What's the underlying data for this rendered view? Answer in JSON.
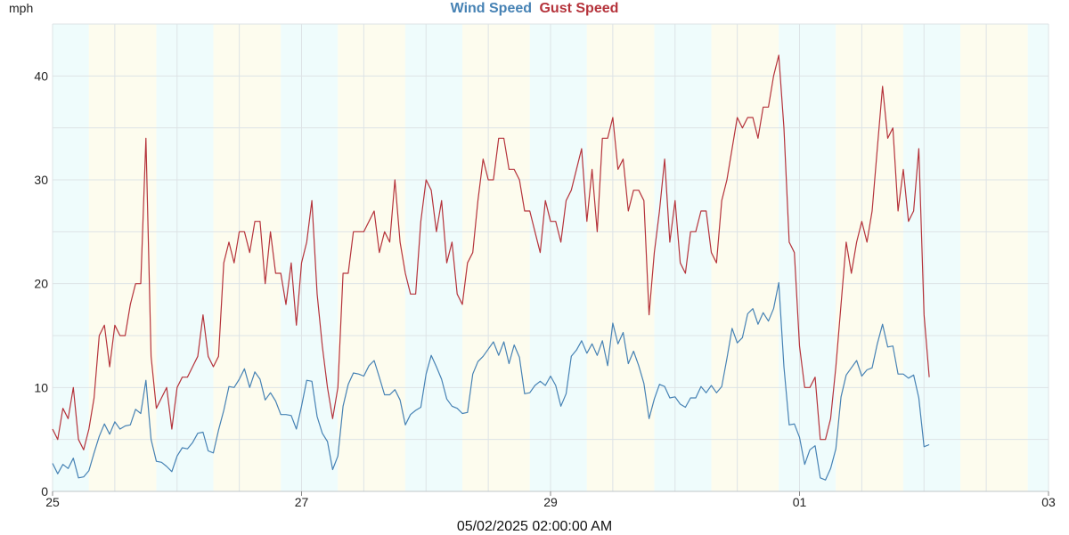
{
  "chart_data": {
    "type": "line",
    "title": "",
    "ylabel": "mph",
    "xlabel": "",
    "ylim": [
      0,
      45
    ],
    "x_range": [
      "2025-04-25T00:00",
      "2025-05-03T00:00"
    ],
    "x_ticks": [
      {
        "label": "25",
        "date": "2025-04-25T00:00"
      },
      {
        "label": "27",
        "date": "2025-04-27T00:00"
      },
      {
        "label": "29",
        "date": "2025-04-29T00:00"
      },
      {
        "label": "01",
        "date": "2025-05-01T00:00"
      },
      {
        "label": "03",
        "date": "2025-05-03T00:00"
      }
    ],
    "y_ticks": [
      0,
      10,
      20,
      30,
      40
    ],
    "grid": true,
    "legend_position": "top-center",
    "series": [
      {
        "name": "Wind Speed",
        "color": "#4682b4",
        "values": [
          2.7,
          1.7,
          2.6,
          2.2,
          3.2,
          1.3,
          1.4,
          2.0,
          3.7,
          5.3,
          6.5,
          5.5,
          6.7,
          6.0,
          6.3,
          6.4,
          7.9,
          7.5,
          10.7,
          5.0,
          2.9,
          2.8,
          2.4,
          1.9,
          3.4,
          4.2,
          4.1,
          4.7,
          5.6,
          5.7,
          3.9,
          3.7,
          5.9,
          7.8,
          10.1,
          10.0,
          10.8,
          11.8,
          10.0,
          11.5,
          10.8,
          8.8,
          9.5,
          8.7,
          7.4,
          7.4,
          7.3,
          6.0,
          8.2,
          10.7,
          10.6,
          7.2,
          5.6,
          4.8,
          2.1,
          3.4,
          8.2,
          10.3,
          11.4,
          11.3,
          11.1,
          12.1,
          12.6,
          11.0,
          9.3,
          9.3,
          9.8,
          8.8,
          6.4,
          7.4,
          7.8,
          8.1,
          11.3,
          13.1,
          12.0,
          10.8,
          8.9,
          8.2,
          8.0,
          7.5,
          7.6,
          11.3,
          12.5,
          13.0,
          13.7,
          14.4,
          13.1,
          14.4,
          12.3,
          14.1,
          12.9,
          9.4,
          9.5,
          10.2,
          10.6,
          10.2,
          11.1,
          10.2,
          8.2,
          9.4,
          13.0,
          13.6,
          14.5,
          13.3,
          14.2,
          13.1,
          14.5,
          12.1,
          16.2,
          14.2,
          15.3,
          12.3,
          13.5,
          12.1,
          10.4,
          7.0,
          8.9,
          10.3,
          10.1,
          9.0,
          9.1,
          8.4,
          8.1,
          9.0,
          9.0,
          10.1,
          9.5,
          10.2,
          9.5,
          10.1,
          12.8,
          15.7,
          14.3,
          14.8,
          17.1,
          17.6,
          16.1,
          17.2,
          16.4,
          17.6,
          20.1,
          12.0,
          6.4,
          6.5,
          5.2,
          2.6,
          4.0,
          4.4,
          1.3,
          1.1,
          2.2,
          4.1,
          9.1,
          11.2,
          11.9,
          12.6,
          11.1,
          11.7,
          11.9,
          14.2,
          16.1,
          13.9,
          14.0,
          11.3,
          11.3,
          10.9,
          11.2,
          9.0,
          4.3,
          4.5
        ]
      },
      {
        "name": "Gust Speed",
        "color": "#b5333b",
        "values": [
          6,
          5,
          8,
          7,
          10,
          5,
          4,
          6,
          9,
          15,
          16,
          12,
          16,
          15,
          15,
          18,
          20,
          20,
          34,
          13,
          8,
          9,
          10,
          6,
          10,
          11,
          11,
          12,
          13,
          17,
          13,
          12,
          13,
          22,
          24,
          22,
          25,
          25,
          23,
          26,
          26,
          20,
          25,
          21,
          21,
          18,
          22,
          16,
          22,
          24,
          28,
          19,
          14,
          10,
          7,
          10,
          21,
          21,
          25,
          25,
          25,
          26,
          27,
          23,
          25,
          24,
          30,
          24,
          21,
          19,
          19,
          26,
          30,
          29,
          25,
          28,
          22,
          24,
          19,
          18,
          22,
          23,
          28,
          32,
          30,
          30,
          34,
          34,
          31,
          31,
          30,
          27,
          27,
          25,
          23,
          28,
          26,
          26,
          24,
          28,
          29,
          31,
          33,
          26,
          31,
          25,
          34,
          34,
          36,
          31,
          32,
          27,
          29,
          29,
          28,
          17,
          23,
          27,
          32,
          24,
          28,
          22,
          21,
          25,
          25,
          27,
          27,
          23,
          22,
          28,
          30,
          33,
          36,
          35,
          36,
          36,
          34,
          37,
          37,
          40,
          42,
          35,
          24,
          23,
          14,
          10,
          10,
          11,
          5,
          5,
          7,
          12,
          18,
          24,
          21,
          24,
          26,
          24,
          27,
          33,
          39,
          34,
          35,
          27,
          31,
          26,
          27,
          33,
          17,
          11
        ]
      }
    ]
  },
  "footer": {
    "timestamp": "05/02/2025 02:00:00 AM"
  }
}
